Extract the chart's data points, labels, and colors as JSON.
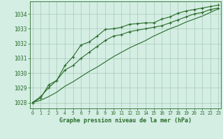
{
  "x": [
    0,
    1,
    2,
    3,
    4,
    5,
    6,
    7,
    8,
    9,
    10,
    11,
    12,
    13,
    14,
    15,
    16,
    17,
    18,
    19,
    20,
    21,
    22,
    23
  ],
  "series1": [
    1028.0,
    1028.3,
    1029.2,
    1029.5,
    1030.5,
    1031.1,
    1031.9,
    1032.1,
    1032.5,
    1032.95,
    1033.0,
    1033.1,
    1033.3,
    1033.35,
    1033.4,
    1033.4,
    1033.65,
    1033.8,
    1034.05,
    1034.2,
    1034.3,
    1034.4,
    1034.5,
    1034.6
  ],
  "series2": [
    1028.0,
    1028.4,
    1029.0,
    1029.5,
    1030.2,
    1030.5,
    1031.0,
    1031.4,
    1031.8,
    1032.2,
    1032.5,
    1032.6,
    1032.8,
    1032.9,
    1033.0,
    1033.1,
    1033.2,
    1033.4,
    1033.6,
    1033.8,
    1034.0,
    1034.1,
    1034.3,
    1034.4
  ],
  "series3": [
    1028.0,
    1028.15,
    1028.4,
    1028.7,
    1029.1,
    1029.4,
    1029.75,
    1030.1,
    1030.4,
    1030.75,
    1031.1,
    1031.4,
    1031.7,
    1031.95,
    1032.2,
    1032.5,
    1032.75,
    1033.0,
    1033.2,
    1033.45,
    1033.65,
    1033.85,
    1034.1,
    1034.35
  ],
  "line_color": "#2a6b2a",
  "bg_color": "#d4eee4",
  "grid_color": "#9dbfaa",
  "xlabel": "Graphe pression niveau de la mer (hPa)",
  "ylim_min": 1027.6,
  "ylim_max": 1034.85,
  "yticks": [
    1028,
    1029,
    1030,
    1031,
    1032,
    1033,
    1034
  ],
  "xticks": [
    0,
    1,
    2,
    3,
    4,
    5,
    6,
    7,
    8,
    9,
    10,
    11,
    12,
    13,
    14,
    15,
    16,
    17,
    18,
    19,
    20,
    21,
    22,
    23
  ]
}
